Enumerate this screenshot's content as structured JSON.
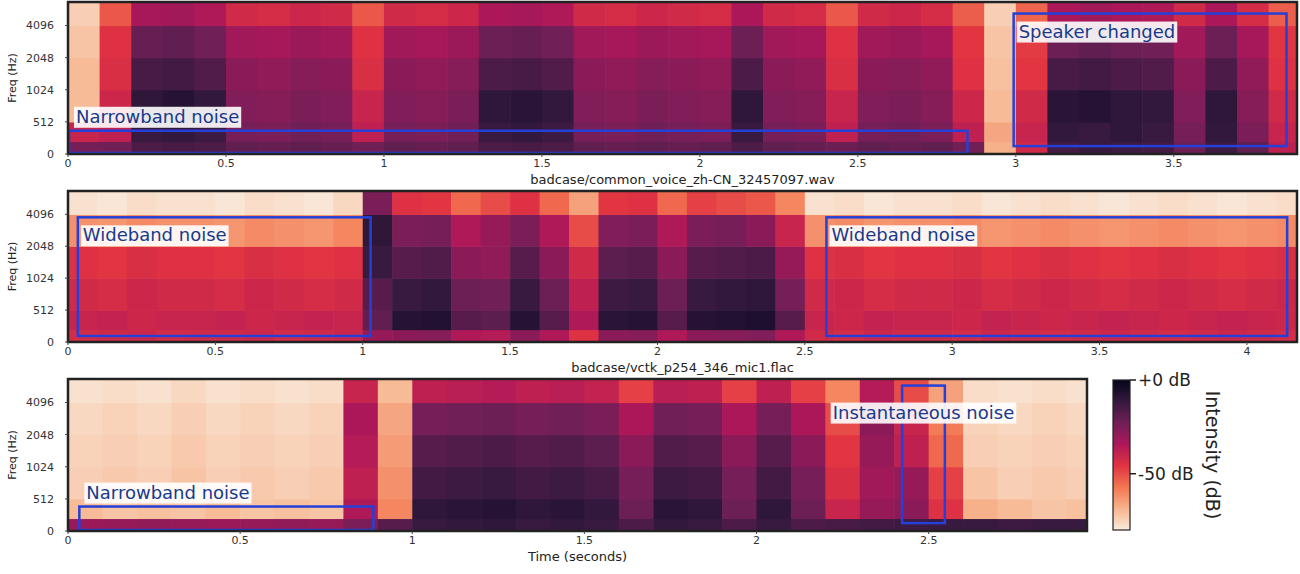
{
  "chart_data": [
    {
      "type": "heatmap",
      "xlabel": "badcase/common_voice_zh-CN_32457097.wav",
      "ylabel": "Freq (Hz)",
      "log": "y",
      "grid": false,
      "xlim": [
        0,
        3.89
      ],
      "ylim": [
        0,
        6800
      ],
      "xticks": [
        0,
        0.5,
        1,
        1.5,
        2,
        2.5,
        3,
        3.5
      ],
      "yticks": [
        0,
        512,
        1024,
        2048,
        4096
      ],
      "x_edges": [
        0,
        0.1,
        0.2,
        0.3,
        0.4,
        0.5,
        0.6,
        0.7,
        0.8,
        0.9,
        1,
        1.1,
        1.2,
        1.3,
        1.4,
        1.5,
        1.6,
        1.7,
        1.8,
        1.9,
        2,
        2.1,
        2.2,
        2.3,
        2.4,
        2.5,
        2.6,
        2.7,
        2.8,
        2.9,
        3,
        3.1,
        3.2,
        3.3,
        3.4,
        3.5,
        3.6,
        3.7,
        3.8,
        3.89
      ],
      "y_edges": [
        0,
        200,
        512,
        1024,
        2048,
        4096,
        6800
      ],
      "cells": [
        [
          -24,
          -23,
          -16,
          -15,
          -16,
          -20,
          -21,
          -20,
          -21,
          -23,
          -20,
          -21,
          -20,
          -16,
          -15,
          -16,
          -20,
          -21,
          -20,
          -21,
          -20,
          -16,
          -20,
          -21,
          -22,
          -20,
          -21,
          -20,
          -23,
          -68,
          -42,
          -14,
          -12,
          -13,
          -14,
          -22,
          -13,
          -20,
          -38
        ],
        [
          -40,
          -38,
          -12,
          -11,
          -13,
          -24,
          -25,
          -23,
          -24,
          -38,
          -24,
          -25,
          -23,
          -12,
          -11,
          -13,
          -24,
          -25,
          -23,
          -24,
          -25,
          -12,
          -24,
          -25,
          -38,
          -24,
          -23,
          -25,
          -38,
          -66,
          -40,
          -11,
          -12,
          -10,
          -12,
          -24,
          -11,
          -25,
          -40
        ],
        [
          -70,
          -41,
          -10,
          -8,
          -11,
          -26,
          -27,
          -25,
          -26,
          -40,
          -26,
          -27,
          -25,
          -10,
          -9,
          -11,
          -26,
          -27,
          -25,
          -26,
          -27,
          -10,
          -26,
          -27,
          -40,
          -26,
          -25,
          -27,
          -41,
          -70,
          -42,
          -9,
          -8,
          -10,
          -11,
          -26,
          -10,
          -27,
          -42
        ],
        [
          -70,
          -44,
          -15,
          -14,
          -17,
          -28,
          -29,
          -27,
          -28,
          -44,
          -28,
          -29,
          -27,
          -16,
          -15,
          -17,
          -28,
          -29,
          -27,
          -28,
          -29,
          -16,
          -28,
          -29,
          -44,
          -28,
          -27,
          -29,
          -45,
          -71,
          -46,
          -15,
          -14,
          -16,
          -17,
          -28,
          -16,
          -29,
          -45
        ],
        [
          -72,
          -45,
          -21,
          -20,
          -23,
          -32,
          -33,
          -31,
          -32,
          -45,
          -32,
          -33,
          -31,
          -22,
          -21,
          -23,
          -32,
          -33,
          -31,
          -32,
          -33,
          -22,
          -32,
          -33,
          -45,
          -32,
          -31,
          -33,
          -46,
          -72,
          -47,
          -22,
          -20,
          -22,
          -23,
          -32,
          -22,
          -33,
          -46
        ],
        [
          -74,
          -52,
          -33,
          -32,
          -35,
          -42,
          -43,
          -41,
          -42,
          -52,
          -42,
          -43,
          -41,
          -34,
          -33,
          -35,
          -42,
          -43,
          -41,
          -42,
          -43,
          -34,
          -42,
          -43,
          -52,
          -42,
          -41,
          -43,
          -53,
          -74,
          -54,
          -34,
          -32,
          -34,
          -35,
          -42,
          -34,
          -43,
          -53
        ]
      ],
      "annotations": [
        {
          "text": "Narrowband noise",
          "x": [
            0,
            2.85
          ],
          "y": [
            0,
            370
          ]
        },
        {
          "text": "Speaker changed",
          "x": [
            2.99,
            3.86
          ],
          "y": [
            110,
            5300
          ]
        }
      ]
    },
    {
      "type": "heatmap",
      "xlabel": "badcase/vctk_p254_346_mic1.flac",
      "ylabel": "Freq (Hz)",
      "log": "y",
      "grid": false,
      "xlim": [
        0,
        4.17
      ],
      "ylim": [
        0,
        6800
      ],
      "xticks": [
        0,
        0.5,
        1,
        1.5,
        2,
        2.5,
        3,
        3.5,
        4
      ],
      "yticks": [
        0,
        512,
        1024,
        2048,
        4096
      ],
      "x_edges": [
        0,
        0.1,
        0.2,
        0.3,
        0.4,
        0.5,
        0.6,
        0.7,
        0.8,
        0.9,
        1,
        1.1,
        1.2,
        1.3,
        1.4,
        1.5,
        1.6,
        1.7,
        1.8,
        1.9,
        2,
        2.1,
        2.2,
        2.3,
        2.4,
        2.5,
        2.6,
        2.7,
        2.8,
        2.9,
        3,
        3.1,
        3.2,
        3.3,
        3.4,
        3.5,
        3.6,
        3.7,
        3.8,
        3.9,
        4,
        4.1,
        4.17
      ],
      "y_edges": [
        0,
        200,
        512,
        1024,
        2048,
        4096,
        6800
      ],
      "cells": [
        [
          -43,
          -42,
          -41,
          -43,
          -42,
          -42,
          -41,
          -43,
          -42,
          -41,
          -30,
          -28,
          -27,
          -35,
          -36,
          -28,
          -35,
          -45,
          -28,
          -27,
          -35,
          -28,
          -27,
          -26,
          -35,
          -42,
          -43,
          -41,
          -42,
          -42,
          -43,
          -41,
          -42,
          -43,
          -42,
          -41,
          -42,
          -43,
          -42,
          -41,
          -42,
          -43
        ],
        [
          -40,
          -39,
          -41,
          -40,
          -40,
          -39,
          -41,
          -40,
          -39,
          -40,
          -20,
          -8,
          -7,
          -18,
          -19,
          -8,
          -18,
          -35,
          -9,
          -8,
          -18,
          -8,
          -7,
          -6,
          -18,
          -40,
          -41,
          -39,
          -40,
          -40,
          -41,
          -39,
          -40,
          -41,
          -40,
          -39,
          -40,
          -41,
          -40,
          -39,
          -40,
          -41
        ],
        [
          -42,
          -43,
          -41,
          -42,
          -42,
          -43,
          -41,
          -42,
          -43,
          -42,
          -18,
          -12,
          -11,
          -22,
          -23,
          -12,
          -22,
          -38,
          -13,
          -12,
          -22,
          -12,
          -11,
          -10,
          -24,
          -42,
          -41,
          -43,
          -42,
          -42,
          -41,
          -43,
          -42,
          -41,
          -42,
          -43,
          -42,
          -41,
          -42,
          -43,
          -42,
          -41
        ],
        [
          -45,
          -46,
          -44,
          -45,
          -45,
          -46,
          -44,
          -45,
          -46,
          -45,
          -12,
          -18,
          -17,
          -28,
          -29,
          -18,
          -28,
          -42,
          -19,
          -18,
          -28,
          -18,
          -17,
          -16,
          -30,
          -45,
          -44,
          -46,
          -45,
          -45,
          -44,
          -46,
          -45,
          -44,
          -45,
          -46,
          -45,
          -44,
          -45,
          -46,
          -45,
          -44
        ],
        [
          -62,
          -63,
          -61,
          -62,
          -62,
          -63,
          -61,
          -62,
          -63,
          -60,
          -10,
          -25,
          -24,
          -35,
          -30,
          -25,
          -35,
          -50,
          -26,
          -25,
          -35,
          -25,
          -24,
          -28,
          -40,
          -62,
          -61,
          -63,
          -62,
          -62,
          -61,
          -63,
          -62,
          -61,
          -62,
          -63,
          -62,
          -61,
          -62,
          -63,
          -62,
          -61
        ],
        [
          -78,
          -79,
          -77,
          -78,
          -78,
          -79,
          -77,
          -78,
          -79,
          -76,
          -25,
          -45,
          -46,
          -55,
          -50,
          -45,
          -55,
          -65,
          -46,
          -45,
          -55,
          -48,
          -50,
          -52,
          -60,
          -78,
          -77,
          -79,
          -78,
          -78,
          -77,
          -79,
          -78,
          -77,
          -78,
          -79,
          -78,
          -77,
          -78,
          -79,
          -78,
          -77
        ]
      ],
      "annotations": [
        {
          "text": "Wideband noise",
          "x": [
            0.03,
            1.03
          ],
          "y": [
            80,
            3840
          ]
        },
        {
          "text": "Wideband noise",
          "x": [
            2.57,
            4.14
          ],
          "y": [
            80,
            3840
          ]
        }
      ]
    },
    {
      "type": "heatmap",
      "xlabel": "Time (seconds)",
      "ylabel": "Freq (Hz)",
      "log": "y",
      "grid": false,
      "xlim": [
        0,
        2.96
      ],
      "ylim": [
        0,
        6800
      ],
      "xticks": [
        0,
        0.5,
        1,
        1.5,
        2,
        2.5
      ],
      "yticks": [
        0,
        512,
        1024,
        2048,
        4096
      ],
      "x_edges": [
        0,
        0.1,
        0.2,
        0.3,
        0.4,
        0.5,
        0.6,
        0.7,
        0.8,
        0.9,
        1,
        1.1,
        1.2,
        1.3,
        1.4,
        1.5,
        1.6,
        1.7,
        1.8,
        1.9,
        2,
        2.1,
        2.2,
        2.3,
        2.4,
        2.5,
        2.6,
        2.7,
        2.8,
        2.9,
        2.96
      ],
      "y_edges": [
        0,
        200,
        512,
        1024,
        2048,
        4096,
        6800
      ],
      "cells": [
        [
          -31,
          -30,
          -29,
          -30,
          -31,
          -30,
          -29,
          -30,
          -25,
          -18,
          -12,
          -11,
          -10,
          -12,
          -11,
          -12,
          -16,
          -11,
          -12,
          -16,
          -12,
          -16,
          -15,
          -14,
          -13,
          -12,
          -12,
          -13,
          -12,
          -12
        ],
        [
          -70,
          -72,
          -71,
          -72,
          -70,
          -72,
          -71,
          -72,
          -35,
          -60,
          -10,
          -9,
          -8,
          -10,
          -9,
          -11,
          -22,
          -9,
          -10,
          -22,
          -10,
          -22,
          -40,
          -30,
          -28,
          -45,
          -68,
          -70,
          -72,
          -71
        ],
        [
          -74,
          -73,
          -74,
          -72,
          -74,
          -73,
          -74,
          -73,
          -38,
          -62,
          -14,
          -13,
          -12,
          -14,
          -13,
          -15,
          -24,
          -13,
          -14,
          -24,
          -14,
          -24,
          -44,
          -32,
          -30,
          -48,
          -72,
          -74,
          -73,
          -74
        ],
        [
          -75,
          -74,
          -75,
          -73,
          -75,
          -74,
          -75,
          -74,
          -36,
          -64,
          -18,
          -17,
          -16,
          -18,
          -17,
          -19,
          -28,
          -17,
          -18,
          -28,
          -18,
          -28,
          -46,
          -30,
          -38,
          -55,
          -74,
          -75,
          -74,
          -75
        ],
        [
          -76,
          -75,
          -76,
          -74,
          -76,
          -75,
          -76,
          -75,
          -34,
          -66,
          -24,
          -23,
          -22,
          -24,
          -23,
          -25,
          -34,
          -23,
          -24,
          -34,
          -24,
          -34,
          -50,
          -28,
          -40,
          -58,
          -75,
          -76,
          -75,
          -76
        ],
        [
          -78,
          -77,
          -78,
          -76,
          -78,
          -77,
          -78,
          -77,
          -40,
          -70,
          -38,
          -37,
          -36,
          -38,
          -37,
          -39,
          -48,
          -37,
          -38,
          -48,
          -38,
          -48,
          -60,
          -36,
          -50,
          -65,
          -77,
          -78,
          -77,
          -78
        ]
      ],
      "annotations": [
        {
          "text": "Narrowband noise",
          "x": [
            0.03,
            0.89
          ],
          "y": [
            0,
            390
          ]
        },
        {
          "text": "Instantaneous noise",
          "x": [
            2.42,
            2.55
          ],
          "y": [
            110,
            5900
          ]
        }
      ]
    }
  ],
  "colorbar": {
    "label": "Intensity (dB)",
    "range": [
      -80,
      0
    ],
    "ticks": [
      {
        "value": 0,
        "label": "+0 dB"
      },
      {
        "value": -50,
        "label": "-50 dB"
      }
    ]
  }
}
